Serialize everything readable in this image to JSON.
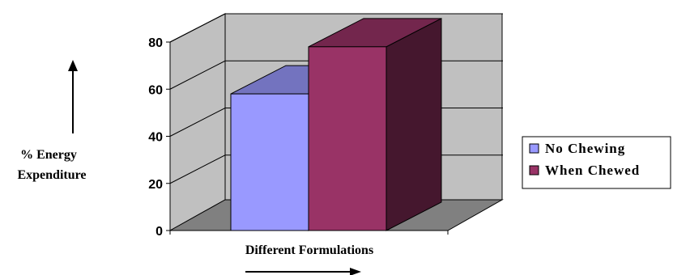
{
  "chart_data": {
    "type": "bar",
    "categories": [
      ""
    ],
    "series": [
      {
        "name": "No Chewing",
        "values": [
          58
        ],
        "color": "#9999ff"
      },
      {
        "name": "When Chewed",
        "values": [
          78
        ],
        "color": "#993366"
      }
    ],
    "title": "",
    "xlabel": "Different Formulations",
    "ylabel_line1": "% Energy",
    "ylabel_line2": "Expenditure",
    "ylim": [
      0,
      80
    ],
    "yticks": [
      0,
      20,
      40,
      60,
      80
    ],
    "grid": true,
    "legend": "right",
    "style": "3d-column",
    "wall_color": "#c0c0c0",
    "floor_color": "#808080"
  }
}
